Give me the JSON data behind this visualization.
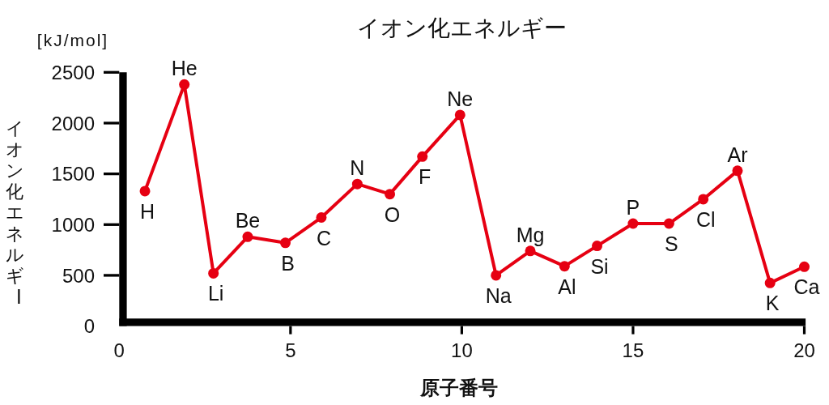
{
  "chart_data": {
    "type": "line",
    "title": "イオン化エネルギー",
    "xlabel": "原子番号",
    "ylabel": "イオン化エネルギー",
    "annotations": [
      "[kJ/mol]",
      {
        "text": "H",
        "x": 0.75,
        "y": 1330
      },
      {
        "text": "He",
        "x": 1.9,
        "y": 2380
      },
      {
        "text": "Li",
        "x": 2.75,
        "y": 520
      },
      {
        "text": "Be",
        "x": 3.75,
        "y": 880
      },
      {
        "text": "B",
        "x": 4.85,
        "y": 820
      },
      {
        "text": "C",
        "x": 5.9,
        "y": 1070
      },
      {
        "text": "N",
        "x": 6.95,
        "y": 1400
      },
      {
        "text": "O",
        "x": 7.9,
        "y": 1300
      },
      {
        "text": "F",
        "x": 8.85,
        "y": 1670
      },
      {
        "text": "Ne",
        "x": 9.95,
        "y": 2080
      },
      {
        "text": "Na",
        "x": 11,
        "y": 500
      },
      {
        "text": "Mg",
        "x": 12,
        "y": 740
      },
      {
        "text": "Al",
        "x": 13,
        "y": 590
      },
      {
        "text": "Si",
        "x": 13.95,
        "y": 790
      },
      {
        "text": "P",
        "x": 15,
        "y": 1010
      },
      {
        "text": "S",
        "x": 16.05,
        "y": 1010
      },
      {
        "text": "Cl",
        "x": 17.05,
        "y": 1250
      },
      {
        "text": "Ar",
        "x": 18.05,
        "y": 1530
      },
      {
        "text": "K",
        "x": 19,
        "y": 425
      },
      {
        "text": "Ca",
        "x": 20,
        "y": 585
      }
    ],
    "x": [
      0.75,
      1.9,
      2.75,
      3.75,
      4.85,
      5.9,
      6.95,
      7.9,
      8.85,
      9.95,
      11,
      12,
      13,
      13.95,
      15,
      16.05,
      17.05,
      18.05,
      19,
      20
    ],
    "series": [
      {
        "color": "#e60012",
        "values": [
          1330,
          2380,
          520,
          880,
          820,
          1070,
          1400,
          1300,
          1670,
          2080,
          500,
          740,
          590,
          790,
          1010,
          1010,
          1250,
          1530,
          425,
          585
        ]
      }
    ],
    "xlim": [
      0,
      20
    ],
    "xticks": [
      0,
      5,
      10,
      15,
      20
    ],
    "ylim": [
      0,
      2500
    ],
    "yticks": [
      0,
      500,
      1000,
      1500,
      2000,
      2500
    ],
    "marker": "circle",
    "line_style": "solid"
  }
}
